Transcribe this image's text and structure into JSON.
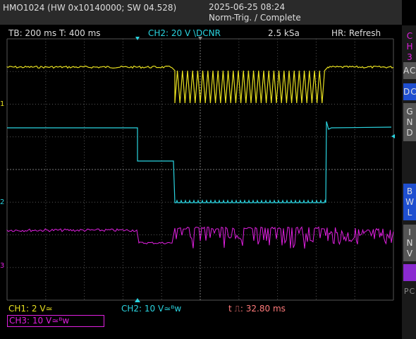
{
  "header": {
    "device": "HMO1024 (HW 0x10140000; SW 04.528)",
    "datetime": "2025-06-25 08:24",
    "status": "Norm-Trig. / Complete"
  },
  "info_bar": {
    "timebase": "TB: 200 ms",
    "trigger_time": "T: 400 ms",
    "channel": "CH2: 20 V \\DCNR",
    "sample_rate": "2.5 kSa",
    "mode": "HR: Refresh"
  },
  "side_menu": {
    "title": "CH3",
    "buttons": [
      "AC",
      "DC",
      "GND",
      "BWL",
      "INV",
      "PC"
    ]
  },
  "markers": [
    "1",
    "2",
    "3"
  ],
  "footer": {
    "ch1": "CH1: 2 V≃",
    "ch2": "CH2: 10 V≃ᴮw",
    "cursor": "t ⎍: 32.80 ms",
    "ch3": "CH3: 10 V≃ᴮw"
  }
}
